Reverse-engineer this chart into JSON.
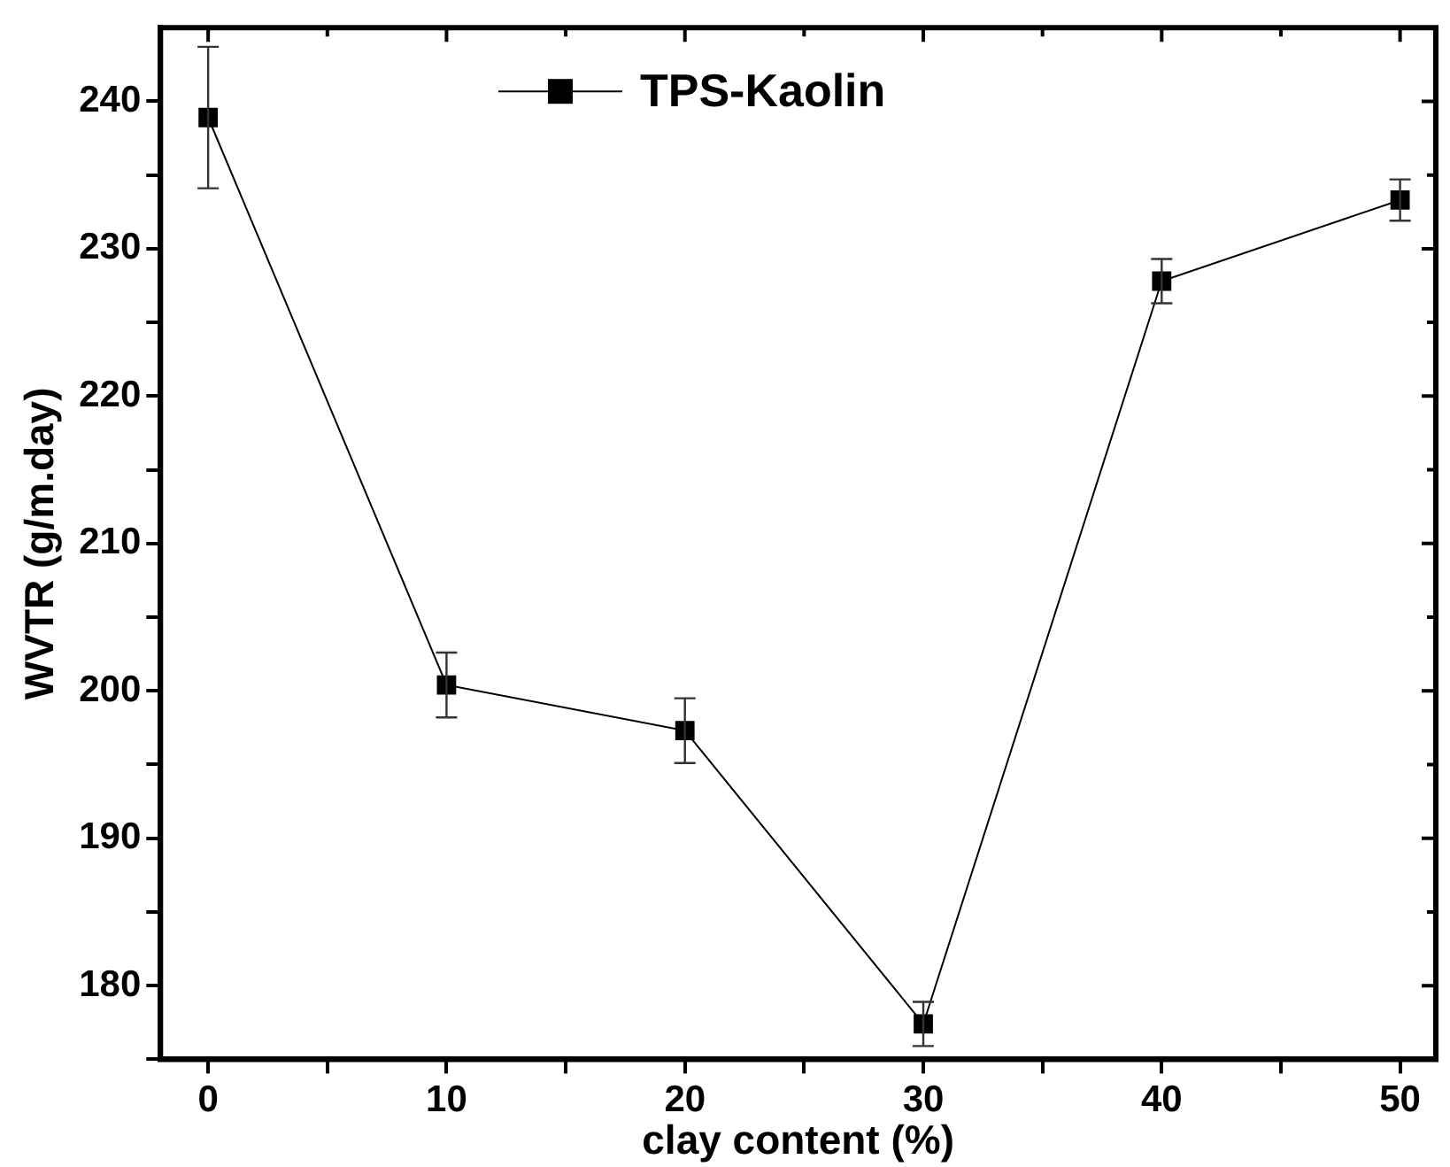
{
  "chart_data": {
    "type": "line",
    "xlabel": "clay content (%)",
    "ylabel": "WVTR (g/m.day)",
    "x": [
      0,
      10,
      20,
      30,
      40,
      50
    ],
    "series": [
      {
        "name": "TPS-Kaolin",
        "color": "#000000",
        "values": [
          238.9,
          200.4,
          197.3,
          177.4,
          227.8,
          233.3
        ],
        "errors": [
          4.8,
          2.2,
          2.2,
          1.5,
          1.5,
          1.4
        ]
      }
    ],
    "xlim": [
      -2,
      51.5
    ],
    "xticks": [
      0,
      {
        "value": 5,
        "label": null
      },
      10,
      {
        "value": 15,
        "label": null
      },
      20,
      {
        "value": 25,
        "label": null
      },
      30,
      {
        "value": 35,
        "label": null
      },
      40,
      {
        "value": 45,
        "label": null
      },
      50
    ],
    "ylim": [
      175,
      245
    ],
    "yticks": [
      {
        "value": 175,
        "label": null
      },
      180,
      {
        "value": 185,
        "label": null
      },
      190,
      {
        "value": 195,
        "label": null
      },
      200,
      {
        "value": 205,
        "label": null
      },
      210,
      {
        "value": 215,
        "label": null
      },
      220,
      {
        "value": 225,
        "label": null
      },
      230,
      {
        "value": 235,
        "label": null
      },
      240
    ],
    "legend": "top",
    "marker": "square",
    "line_style": "solid",
    "grid": false
  }
}
